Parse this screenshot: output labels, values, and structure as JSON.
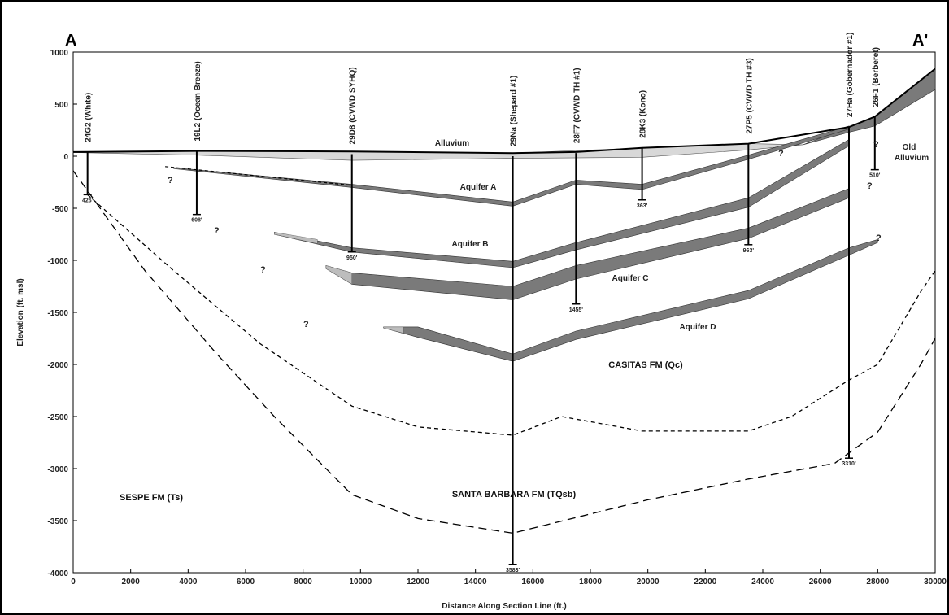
{
  "section": {
    "start_label": "A",
    "end_label": "A'",
    "x_axis_title": "Distance Along Section Line (ft.)",
    "y_axis_title": "Elevation (ft. msl)",
    "x_ticks": [
      "0",
      "2000",
      "4000",
      "6000",
      "8000",
      "10000",
      "12000",
      "14000",
      "16000",
      "18000",
      "20000",
      "22000",
      "24000",
      "26000",
      "28000",
      "30000"
    ],
    "y_ticks": [
      "1000",
      "500",
      "0",
      "-500",
      "-1000",
      "-1500",
      "-2000",
      "-2500",
      "-3000",
      "-3500",
      "-4000"
    ]
  },
  "wells": [
    {
      "name": "24G2 (White)",
      "depth": "426'",
      "x": 500,
      "top": 40,
      "bottom": -370
    },
    {
      "name": "19L2 (Ocean Breeze)",
      "depth": "608'",
      "x": 4300,
      "top": 50,
      "bottom": -560
    },
    {
      "name": "29D8 (CVWD SYHQ)",
      "depth": "950'",
      "x": 9700,
      "top": 20,
      "bottom": -920
    },
    {
      "name": "29Na (Shepard #1)",
      "depth": "3583'",
      "x": 15300,
      "top": 0,
      "bottom": -3920
    },
    {
      "name": "28F7 (CVWD TH #1)",
      "depth": "1455'",
      "x": 17500,
      "top": 30,
      "bottom": -1420
    },
    {
      "name": "28K3 (Kono)",
      "depth": "363'",
      "x": 19800,
      "top": 80,
      "bottom": -420
    },
    {
      "name": "27P5 (CVWD TH #3)",
      "depth": "963'",
      "x": 23500,
      "top": 120,
      "bottom": -850
    },
    {
      "name": "27Ha (Gobernador #1)",
      "depth": "3310'",
      "x": 27000,
      "top": 280,
      "bottom": -2900
    },
    {
      "name": "26F1 (Berberet)",
      "depth": "510'",
      "x": 27900,
      "top": 380,
      "bottom": -130
    }
  ],
  "units": {
    "alluvium": "Alluvium",
    "old_alluvium_1": "Old",
    "old_alluvium_2": "Alluvium",
    "aquifer_a": "Aquifer A",
    "aquifer_b": "Aquifer B",
    "aquifer_c": "Aquifer C",
    "aquifer_d": "Aquifer D"
  },
  "formations": {
    "casitas": "CASITAS FM (Qc)",
    "santa_barbara": "SANTA BARBARA FM (TQsb)",
    "sespe": "SESPE FM (Ts)"
  },
  "query_mark": "?",
  "colors": {
    "aquifer_fill": "#7a7a7a",
    "alluvium_fill": "#d8d8d8",
    "line": "#000000"
  }
}
